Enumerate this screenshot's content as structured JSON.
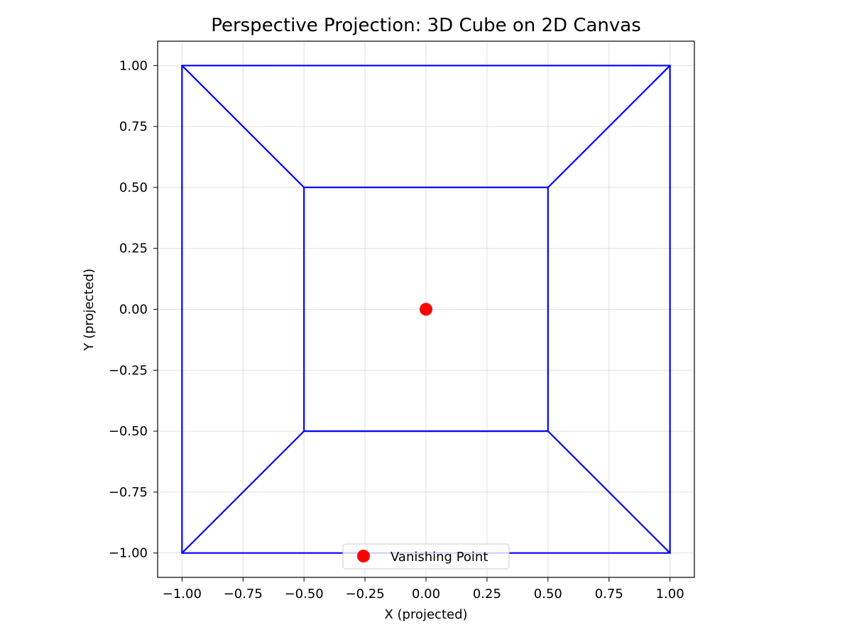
{
  "chart_data": {
    "type": "line",
    "title": "Perspective Projection: 3D Cube on 2D Canvas",
    "xlabel": "X (projected)",
    "ylabel": "Y (projected)",
    "xlim": [
      -1.1,
      1.1
    ],
    "ylim": [
      -1.1,
      1.1
    ],
    "xticks": [
      -1.0,
      -0.75,
      -0.5,
      -0.25,
      0.0,
      0.25,
      0.5,
      0.75,
      1.0
    ],
    "yticks": [
      -1.0,
      -0.75,
      -0.5,
      -0.25,
      0.0,
      0.25,
      0.5,
      0.75,
      1.0
    ],
    "xtick_labels": [
      "−1.00",
      "−0.75",
      "−0.50",
      "−0.25",
      "0.00",
      "0.25",
      "0.50",
      "0.75",
      "1.00"
    ],
    "ytick_labels": [
      "−1.00",
      "−0.75",
      "−0.50",
      "−0.25",
      "0.00",
      "0.25",
      "0.50",
      "0.75",
      "1.00"
    ],
    "grid": true,
    "edge_color": "#0000ff",
    "edges": [
      [
        [
          -1,
          -1
        ],
        [
          1,
          -1
        ]
      ],
      [
        [
          1,
          -1
        ],
        [
          1,
          1
        ]
      ],
      [
        [
          1,
          1
        ],
        [
          -1,
          1
        ]
      ],
      [
        [
          -1,
          1
        ],
        [
          -1,
          -1
        ]
      ],
      [
        [
          -0.5,
          -0.5
        ],
        [
          0.5,
          -0.5
        ]
      ],
      [
        [
          0.5,
          -0.5
        ],
        [
          0.5,
          0.5
        ]
      ],
      [
        [
          0.5,
          0.5
        ],
        [
          -0.5,
          0.5
        ]
      ],
      [
        [
          -0.5,
          0.5
        ],
        [
          -0.5,
          -0.5
        ]
      ],
      [
        [
          -1,
          -1
        ],
        [
          -0.5,
          -0.5
        ]
      ],
      [
        [
          1,
          -1
        ],
        [
          0.5,
          -0.5
        ]
      ],
      [
        [
          1,
          1
        ],
        [
          0.5,
          0.5
        ]
      ],
      [
        [
          -1,
          1
        ],
        [
          -0.5,
          0.5
        ]
      ]
    ],
    "series": [
      {
        "name": "Vanishing Point",
        "type": "scatter",
        "color": "#ff0000",
        "points": [
          [
            0.0,
            0.0
          ]
        ]
      }
    ],
    "legend": {
      "placement": "lower center",
      "entries": [
        "Vanishing Point"
      ]
    }
  }
}
